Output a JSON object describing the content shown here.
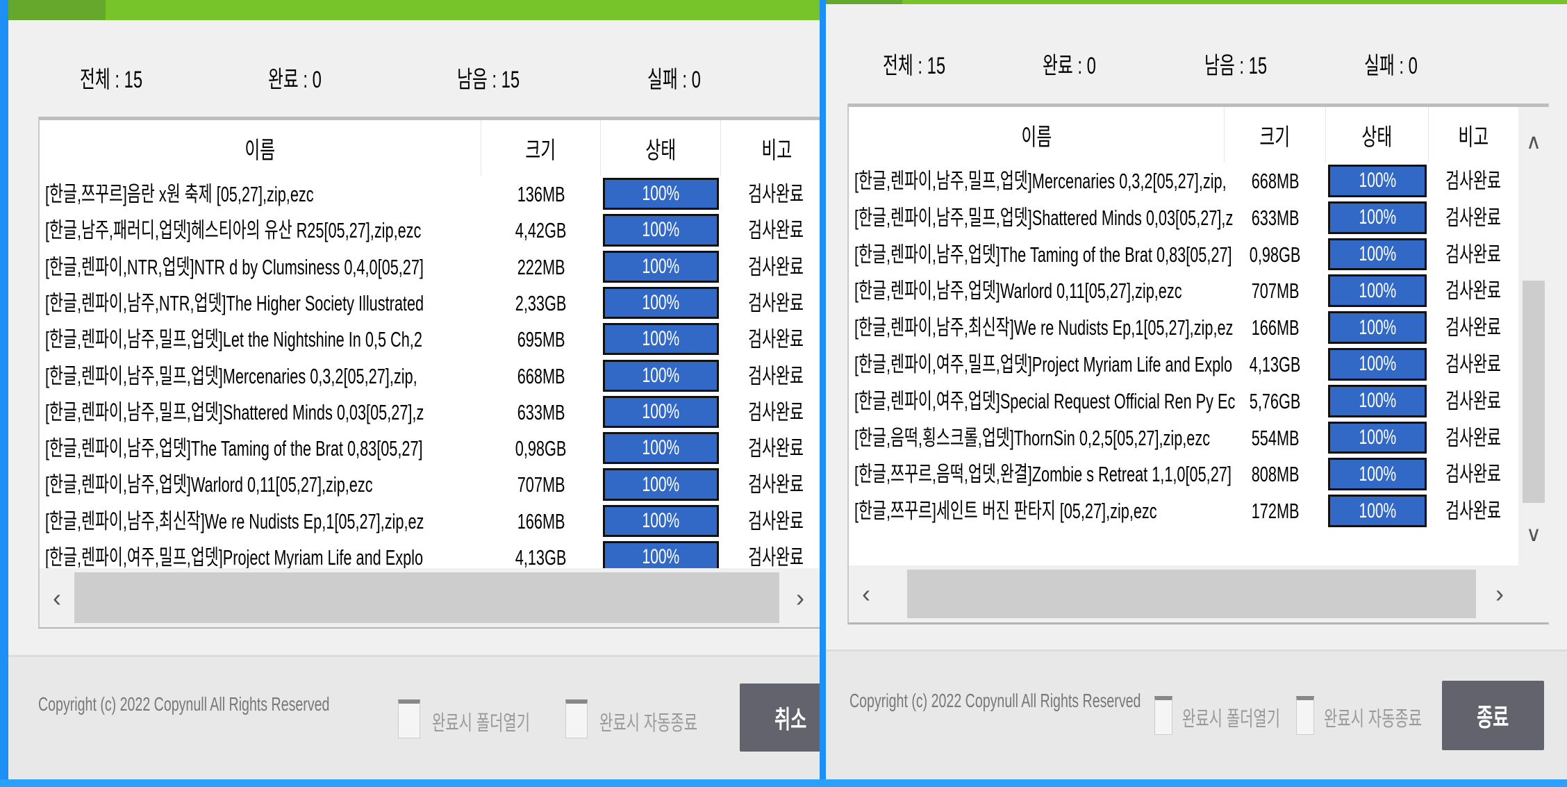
{
  "colors": {
    "accent_green": "#76c32a",
    "progress_blue": "#3369c6",
    "window_border": "#1e8ff5",
    "button": "#63636d"
  },
  "left": {
    "stats": {
      "total": "전체 : 15",
      "done": "완료 : 0",
      "remain": "남음 : 15",
      "fail": "실패 : 0"
    },
    "columns": [
      "이름",
      "크기",
      "상태",
      "비고"
    ],
    "rows": [
      {
        "name": "[한글,쯔꾸르]음란 x원 축제 [05,27],zip,ezc",
        "size": "136MB",
        "progress": 100,
        "status": "100%",
        "note": "검사완료"
      },
      {
        "name": "[한글,남주,패러디,업뎃]헤스티아의 유산 R25[05,27],zip,ezc",
        "size": "4,42GB",
        "progress": 100,
        "status": "100%",
        "note": "검사완료"
      },
      {
        "name": "[한글,렌파이,NTR,업뎃]NTR d by Clumsiness 0,4,0[05,27]",
        "size": "222MB",
        "progress": 100,
        "status": "100%",
        "note": "검사완료"
      },
      {
        "name": "[한글,렌파이,남주,NTR,업뎃]The Higher Society Illustrated",
        "size": "2,33GB",
        "progress": 100,
        "status": "100%",
        "note": "검사완료"
      },
      {
        "name": "[한글,렌파이,남주,밀프,업뎃]Let the Nightshine In 0,5 Ch,2",
        "size": "695MB",
        "progress": 100,
        "status": "100%",
        "note": "검사완료"
      },
      {
        "name": "[한글,렌파이,남주,밀프,업뎃]Mercenaries 0,3,2[05,27],zip,",
        "size": "668MB",
        "progress": 100,
        "status": "100%",
        "note": "검사완료"
      },
      {
        "name": "[한글,렌파이,남주,밀프,업뎃]Shattered Minds 0,03[05,27],z",
        "size": "633MB",
        "progress": 100,
        "status": "100%",
        "note": "검사완료"
      },
      {
        "name": "[한글,렌파이,남주,업뎃]The Taming of the Brat 0,83[05,27]",
        "size": "0,98GB",
        "progress": 100,
        "status": "100%",
        "note": "검사완료"
      },
      {
        "name": "[한글,렌파이,남주,업뎃]Warlord 0,11[05,27],zip,ezc",
        "size": "707MB",
        "progress": 100,
        "status": "100%",
        "note": "검사완료"
      },
      {
        "name": "[한글,렌파이,남주,최신작]We re Nudists Ep,1[05,27],zip,ez",
        "size": "166MB",
        "progress": 100,
        "status": "100%",
        "note": "검사완료"
      },
      {
        "name": "[한글,렌파이,여주,밀프,업뎃]Project Myriam Life and Explo",
        "size": "4,13GB",
        "progress": 100,
        "status": "100%",
        "note": "검사완료"
      }
    ],
    "footer": {
      "copyright": "Copyright (c) 2022 Copynull All Rights Reserved",
      "open_folder": "완료시 폴더열기",
      "auto_exit": "완료시 자동종료",
      "button": "취소"
    }
  },
  "right": {
    "stats": {
      "total": "전체 : 15",
      "done": "완료 : 0",
      "remain": "남음 : 15",
      "fail": "실패 : 0"
    },
    "columns": [
      "이름",
      "크기",
      "상태",
      "비고"
    ],
    "rows": [
      {
        "name": "[한글,렌파이,남주,밀프,업뎃]Mercenaries 0,3,2[05,27],zip,",
        "size": "668MB",
        "progress": 100,
        "status": "100%",
        "note": "검사완료"
      },
      {
        "name": "[한글,렌파이,남주,밀프,업뎃]Shattered Minds 0,03[05,27],z",
        "size": "633MB",
        "progress": 100,
        "status": "100%",
        "note": "검사완료"
      },
      {
        "name": "[한글,렌파이,남주,업뎃]The Taming of the Brat 0,83[05,27]",
        "size": "0,98GB",
        "progress": 100,
        "status": "100%",
        "note": "검사완료"
      },
      {
        "name": "[한글,렌파이,남주,업뎃]Warlord 0,11[05,27],zip,ezc",
        "size": "707MB",
        "progress": 100,
        "status": "100%",
        "note": "검사완료"
      },
      {
        "name": "[한글,렌파이,남주,최신작]We re Nudists Ep,1[05,27],zip,ez",
        "size": "166MB",
        "progress": 100,
        "status": "100%",
        "note": "검사완료"
      },
      {
        "name": "[한글,렌파이,여주,밀프,업뎃]Project Myriam Life and Explo",
        "size": "4,13GB",
        "progress": 100,
        "status": "100%",
        "note": "검사완료"
      },
      {
        "name": "[한글,렌파이,여주,업뎃]Special Request Official Ren Py Ec",
        "size": "5,76GB",
        "progress": 100,
        "status": "100%",
        "note": "검사완료"
      },
      {
        "name": "[한글,음떡,횡스크롤,업뎃]ThornSin 0,2,5[05,27],zip,ezc",
        "size": "554MB",
        "progress": 100,
        "status": "100%",
        "note": "검사완료"
      },
      {
        "name": "[한글,쯔꾸르,음떡,업뎃,완결]Zombie s Retreat 1,1,0[05,27]",
        "size": "808MB",
        "progress": 100,
        "status": "100%",
        "note": "검사완료"
      },
      {
        "name": "[한글,쯔꾸르]세인트 버진 판타지 [05,27],zip,ezc",
        "size": "172MB",
        "progress": 100,
        "status": "100%",
        "note": "검사완료"
      }
    ],
    "footer": {
      "copyright": "Copyright (c) 2022 Copynull All Rights Reserved",
      "open_folder": "완료시 폴더열기",
      "auto_exit": "완료시 자동종료",
      "button": "종료"
    }
  }
}
